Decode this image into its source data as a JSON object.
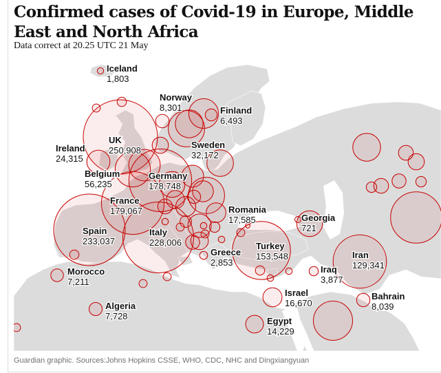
{
  "header": {
    "title": "Confirmed cases of Covid-19 in Europe, Middle East and North Africa",
    "subtitle": "Data correct at 20.25 UTC 21 May"
  },
  "footer": {
    "source": "Guardian graphic. Sources:Johns Hopkins CSSE, WHO, CDC, NHC and Dingxiangyuan"
  },
  "colors": {
    "land": "#dcdcdc",
    "sea": "#ffffff",
    "circle_stroke": "#c70000",
    "circle_fill": "rgba(199,0,0,0.07)",
    "text": "#121212"
  },
  "countries": [
    {
      "name": "Iceland",
      "cases": "1,803"
    },
    {
      "name": "Norway",
      "cases": "8,301"
    },
    {
      "name": "Finland",
      "cases": "6,493"
    },
    {
      "name": "UK",
      "cases": "250,908"
    },
    {
      "name": "Ireland",
      "cases": "24,315"
    },
    {
      "name": "Sweden",
      "cases": "32,172"
    },
    {
      "name": "Belgium",
      "cases": "56,235"
    },
    {
      "name": "Germany",
      "cases": "178,748"
    },
    {
      "name": "France",
      "cases": "179,067"
    },
    {
      "name": "Spain",
      "cases": "233,037"
    },
    {
      "name": "Italy",
      "cases": "228,006"
    },
    {
      "name": "Romania",
      "cases": "17,585"
    },
    {
      "name": "Georgia",
      "cases": "721"
    },
    {
      "name": "Turkey",
      "cases": "153,548"
    },
    {
      "name": "Greece",
      "cases": "2,853"
    },
    {
      "name": "Iran",
      "cases": "129,341"
    },
    {
      "name": "Morocco",
      "cases": "7,211"
    },
    {
      "name": "Iraq",
      "cases": "3,877"
    },
    {
      "name": "Israel",
      "cases": "16,670"
    },
    {
      "name": "Bahrain",
      "cases": "8,039"
    },
    {
      "name": "Algeria",
      "cases": "7,728"
    },
    {
      "name": "Egypt",
      "cases": "14,229"
    }
  ],
  "unlabeled_cases": [
    4,
    3,
    40,
    35,
    12,
    60,
    30,
    22,
    45,
    15,
    10,
    18,
    6,
    8,
    20,
    14,
    9,
    3,
    3,
    2,
    5,
    2,
    2,
    3,
    1,
    25,
    60,
    3,
    3,
    4,
    4,
    2,
    2,
    5,
    35,
    70,
    120,
    10,
    12,
    9,
    30,
    3,
    5,
    10
  ]
}
